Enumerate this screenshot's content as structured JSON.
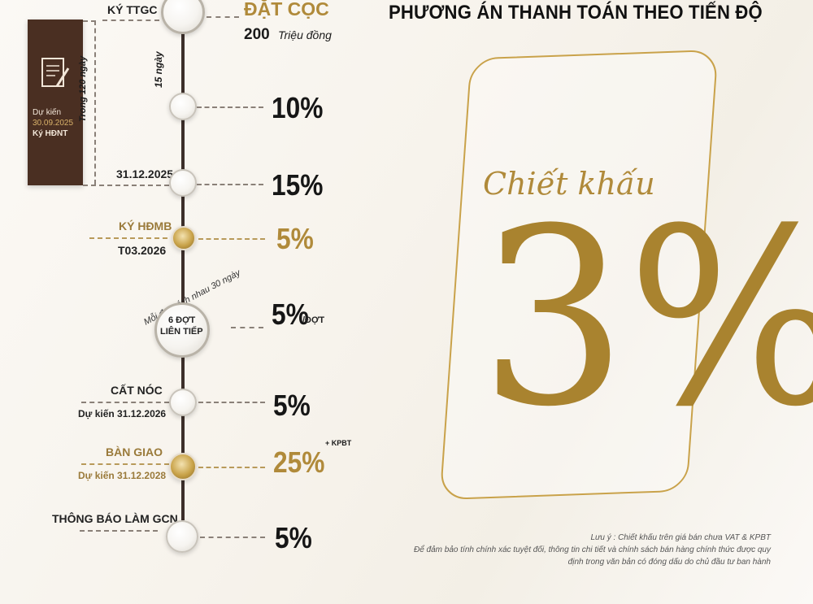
{
  "header": {
    "title": "PHƯƠNG ÁN THANH TOÁN THEO TIẾN ĐỘ"
  },
  "contract_box": {
    "line1": "Dự kiến",
    "line2": "30.09.2025",
    "line3": "Ký HĐNT",
    "icon_label": "CONTRACT"
  },
  "timeline": {
    "bracket_label": "Trong 120 ngày",
    "gap_label": "15 ngày",
    "installment_label": "Mỗi đợt cách nhau 30 ngày",
    "steps": [
      {
        "label": "KÝ TTGC",
        "value_title": "ĐẶT CỌC",
        "amount": "200",
        "amount_unit": "Triệu đồng"
      },
      {
        "value": "10%"
      },
      {
        "label": "31.12.2025",
        "value": "15%"
      },
      {
        "label": "KÝ HĐMB",
        "sublabel": "T03.2026",
        "value": "5%"
      },
      {
        "badge_line1": "6 ĐỢT",
        "badge_line2": "LIÊN TIẾP",
        "value": "5%",
        "value_suffix": "/ĐỢT"
      },
      {
        "label": "CẤT NÓC",
        "sublabel": "Dự kiến 31.12.2026",
        "value": "5%"
      },
      {
        "label": "BÀN GIAO",
        "sublabel": "Dự kiến 31.12.2028",
        "value": "25%",
        "value_sup": "+ KPBT"
      },
      {
        "label": "THÔNG BÁO LÀM GCN",
        "value": "5%"
      }
    ]
  },
  "discount": {
    "caption": "Chiết khấu",
    "value": "3%"
  },
  "notes": {
    "line1": "Lưu ý : Chiết khấu trên giá bán chưa VAT & KPBT",
    "line2": "Để đảm bảo tính chính xác tuyệt đối, thông tin chi tiết và chính sách bán hàng chính thức được quy",
    "line3": "định trong văn bản có đóng dấu do chủ đầu tư ban hành"
  },
  "colors": {
    "brown": "#4a2f22",
    "gold": "#b08a3a",
    "text": "#161616"
  }
}
